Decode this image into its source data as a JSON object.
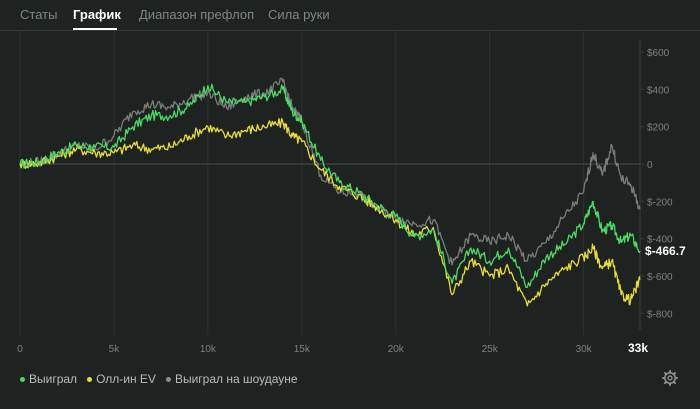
{
  "tabs": [
    {
      "label": "Статы"
    },
    {
      "label": "График"
    },
    {
      "label": "Диапазон префлоп"
    },
    {
      "label": "Сила руки"
    }
  ],
  "current_value_label": "$-466.7",
  "legend": [
    {
      "label": "Выиграл",
      "color": "#4cd964"
    },
    {
      "label": "Олл-ин EV",
      "color": "#e8dc3a"
    },
    {
      "label": "Выиграл на шоудауне",
      "color": "#8a8d8b"
    }
  ],
  "chart_data": {
    "type": "line",
    "x": [
      0,
      1000,
      2000,
      3000,
      4000,
      5000,
      6000,
      7000,
      8000,
      9000,
      10000,
      11000,
      12000,
      13000,
      14000,
      14500,
      15000,
      16000,
      17000,
      18000,
      19000,
      20000,
      21000,
      22000,
      23000,
      24000,
      25000,
      26000,
      27000,
      28000,
      29000,
      30000,
      30500,
      31000,
      31500,
      32000,
      32500,
      33000
    ],
    "series": [
      {
        "name": "Выиграл",
        "color": "#4cd964",
        "values": [
          0,
          10,
          60,
          100,
          90,
          90,
          200,
          260,
          260,
          310,
          420,
          330,
          330,
          360,
          400,
          280,
          230,
          20,
          -100,
          -150,
          -220,
          -280,
          -390,
          -350,
          -640,
          -450,
          -520,
          -450,
          -660,
          -500,
          -430,
          -320,
          -200,
          -360,
          -330,
          -420,
          -380,
          -466.7
        ]
      },
      {
        "name": "Олл-ин EV",
        "color": "#e8dc3a",
        "values": [
          0,
          5,
          40,
          80,
          60,
          60,
          100,
          80,
          90,
          150,
          200,
          150,
          180,
          200,
          220,
          150,
          120,
          -30,
          -120,
          -170,
          -230,
          -300,
          -380,
          -340,
          -700,
          -520,
          -600,
          -560,
          -760,
          -640,
          -560,
          -500,
          -450,
          -560,
          -520,
          -700,
          -730,
          -620
        ]
      },
      {
        "name": "Выиграл на шоудауне",
        "color": "#8a8d8b",
        "values": [
          0,
          10,
          50,
          100,
          80,
          150,
          280,
          320,
          300,
          350,
          380,
          300,
          360,
          380,
          440,
          300,
          230,
          -60,
          -150,
          -160,
          -240,
          -290,
          -320,
          -300,
          -540,
          -380,
          -420,
          -380,
          -520,
          -420,
          -280,
          -150,
          60,
          -60,
          100,
          -80,
          -110,
          -240
        ]
      }
    ],
    "xlabel": "",
    "ylabel": "",
    "x_ticks": [
      "0",
      "5k",
      "10k",
      "15k",
      "20k",
      "25k",
      "30k",
      "33k"
    ],
    "x_tick_values": [
      0,
      5000,
      10000,
      15000,
      20000,
      25000,
      30000,
      33000
    ],
    "y_ticks": [
      "$600",
      "$400",
      "$200",
      "0",
      "$-200",
      "$-400",
      "$-600",
      "$-800"
    ],
    "y_tick_values": [
      600,
      400,
      200,
      0,
      -200,
      -400,
      -600,
      -800
    ],
    "xlim": [
      0,
      33000
    ],
    "ylim": [
      -850,
      650
    ],
    "grid": true
  }
}
